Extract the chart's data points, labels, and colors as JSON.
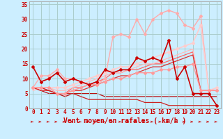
{
  "background_color": "#cceeff",
  "grid_color": "#aacccc",
  "xlabel": "Vent moyen/en rafales ( km/h )",
  "xlabel_color": "#cc0000",
  "xlabel_fontsize": 7,
  "tick_color": "#cc0000",
  "tick_fontsize": 5.5,
  "xlim": [
    -0.5,
    23.5
  ],
  "ylim": [
    0,
    36
  ],
  "yticks": [
    0,
    5,
    10,
    15,
    20,
    25,
    30,
    35
  ],
  "xticks": [
    0,
    1,
    2,
    3,
    4,
    5,
    6,
    7,
    8,
    9,
    10,
    11,
    12,
    13,
    14,
    15,
    16,
    17,
    18,
    19,
    20,
    21,
    22,
    23
  ],
  "series": [
    {
      "x": [
        0,
        1,
        2,
        3,
        4,
        5,
        6,
        7,
        8,
        9,
        10,
        11,
        12,
        13,
        14,
        15,
        16,
        17,
        18,
        19,
        20,
        21,
        22,
        23
      ],
      "y": [
        7,
        11,
        11,
        13,
        10,
        10,
        9,
        8,
        8,
        10,
        24,
        25,
        24,
        30,
        25,
        30,
        32,
        33,
        32,
        28,
        27,
        31,
        6,
        6
      ],
      "color": "#ffaaaa",
      "lw": 1.0,
      "marker": "D",
      "ms": 2.0,
      "zorder": 3
    },
    {
      "x": [
        0,
        1,
        2,
        3,
        4,
        5,
        6,
        7,
        8,
        9,
        10,
        11,
        12,
        13,
        14,
        15,
        16,
        17,
        18,
        19,
        20,
        21,
        22,
        23
      ],
      "y": [
        7,
        7,
        7,
        7,
        7,
        8,
        9,
        10,
        11,
        12,
        13,
        14,
        14,
        15,
        16,
        17,
        18,
        19,
        20,
        21,
        22,
        28,
        6,
        7
      ],
      "color": "#ffcccc",
      "lw": 1.2,
      "marker": "D",
      "ms": 2.0,
      "zorder": 3
    },
    {
      "x": [
        0,
        1,
        2,
        3,
        4,
        5,
        6,
        7,
        8,
        9,
        10,
        11,
        12,
        13,
        14,
        15,
        16,
        17,
        18,
        19,
        20,
        21,
        22,
        23
      ],
      "y": [
        7,
        7,
        7,
        5,
        5,
        6,
        7,
        8,
        8,
        9,
        10,
        10,
        11,
        12,
        12,
        12,
        13,
        13,
        14,
        14,
        15,
        6,
        6,
        6
      ],
      "color": "#ff9999",
      "lw": 1.0,
      "marker": "D",
      "ms": 2.0,
      "zorder": 3
    },
    {
      "x": [
        0,
        1,
        2,
        3,
        4,
        5,
        6,
        7,
        8,
        9,
        10,
        11,
        12,
        13,
        14,
        15,
        16,
        17,
        18,
        19,
        20,
        21,
        22,
        23
      ],
      "y": [
        14,
        9,
        10,
        12,
        9,
        10,
        9,
        8,
        9,
        13,
        12,
        13,
        13,
        17,
        16,
        17,
        16,
        23,
        10,
        14,
        5,
        5,
        5,
        1
      ],
      "color": "#cc0000",
      "lw": 1.2,
      "marker": "D",
      "ms": 2.0,
      "zorder": 5
    },
    {
      "x": [
        0,
        1,
        2,
        3,
        4,
        5,
        6,
        7,
        8,
        9,
        10,
        11,
        12,
        13,
        14,
        15,
        16,
        17,
        18,
        19,
        20,
        21,
        22,
        23
      ],
      "y": [
        7,
        7,
        6,
        5,
        5,
        7,
        7,
        8,
        9,
        10,
        12,
        12,
        13,
        13,
        14,
        15,
        15,
        16,
        17,
        18,
        19,
        6,
        6,
        6
      ],
      "color": "#ff6666",
      "lw": 0.9,
      "marker": null,
      "ms": 0,
      "zorder": 2
    },
    {
      "x": [
        0,
        1,
        2,
        3,
        4,
        5,
        6,
        7,
        8,
        9,
        10,
        11,
        12,
        13,
        14,
        15,
        16,
        17,
        18,
        19,
        20,
        21,
        22,
        23
      ],
      "y": [
        6,
        7,
        7,
        6,
        6,
        7,
        8,
        9,
        10,
        11,
        12,
        12,
        13,
        14,
        15,
        15,
        16,
        17,
        18,
        19,
        20,
        6,
        6,
        6
      ],
      "color": "#ffbbbb",
      "lw": 0.9,
      "marker": null,
      "ms": 0,
      "zorder": 2
    },
    {
      "x": [
        0,
        1,
        2,
        3,
        4,
        5,
        6,
        7,
        8,
        9,
        10,
        11,
        12,
        13,
        14,
        15,
        16,
        17,
        18,
        19,
        20,
        21,
        22,
        23
      ],
      "y": [
        7,
        6,
        6,
        5,
        5,
        6,
        6,
        7,
        8,
        9,
        10,
        11,
        11,
        12,
        13,
        14,
        14,
        15,
        16,
        17,
        18,
        6,
        6,
        6
      ],
      "color": "#dd3333",
      "lw": 0.9,
      "marker": null,
      "ms": 0,
      "zorder": 2
    },
    {
      "x": [
        0,
        1,
        2,
        3,
        4,
        5,
        6,
        7,
        8,
        9,
        10,
        11,
        12,
        13,
        14,
        15,
        16,
        17,
        18,
        19,
        20,
        21,
        22,
        23
      ],
      "y": [
        7,
        7,
        6,
        5,
        5,
        5,
        4,
        3,
        3,
        3,
        3,
        3,
        3,
        3,
        2,
        2,
        2,
        1,
        1,
        1,
        1,
        1,
        1,
        1
      ],
      "color": "#cc2222",
      "lw": 0.9,
      "marker": null,
      "ms": 0,
      "zorder": 2
    },
    {
      "x": [
        0,
        1,
        2,
        3,
        4,
        5,
        6,
        7,
        8,
        9,
        10,
        11,
        12,
        13,
        14,
        15,
        16,
        17,
        18,
        19,
        20,
        21,
        22,
        23
      ],
      "y": [
        7,
        6,
        5,
        5,
        4,
        5,
        5,
        5,
        5,
        4,
        4,
        4,
        4,
        4,
        4,
        4,
        4,
        4,
        4,
        4,
        4,
        4,
        4,
        4
      ],
      "color": "#bb1111",
      "lw": 0.9,
      "marker": null,
      "ms": 0,
      "zorder": 1
    }
  ]
}
